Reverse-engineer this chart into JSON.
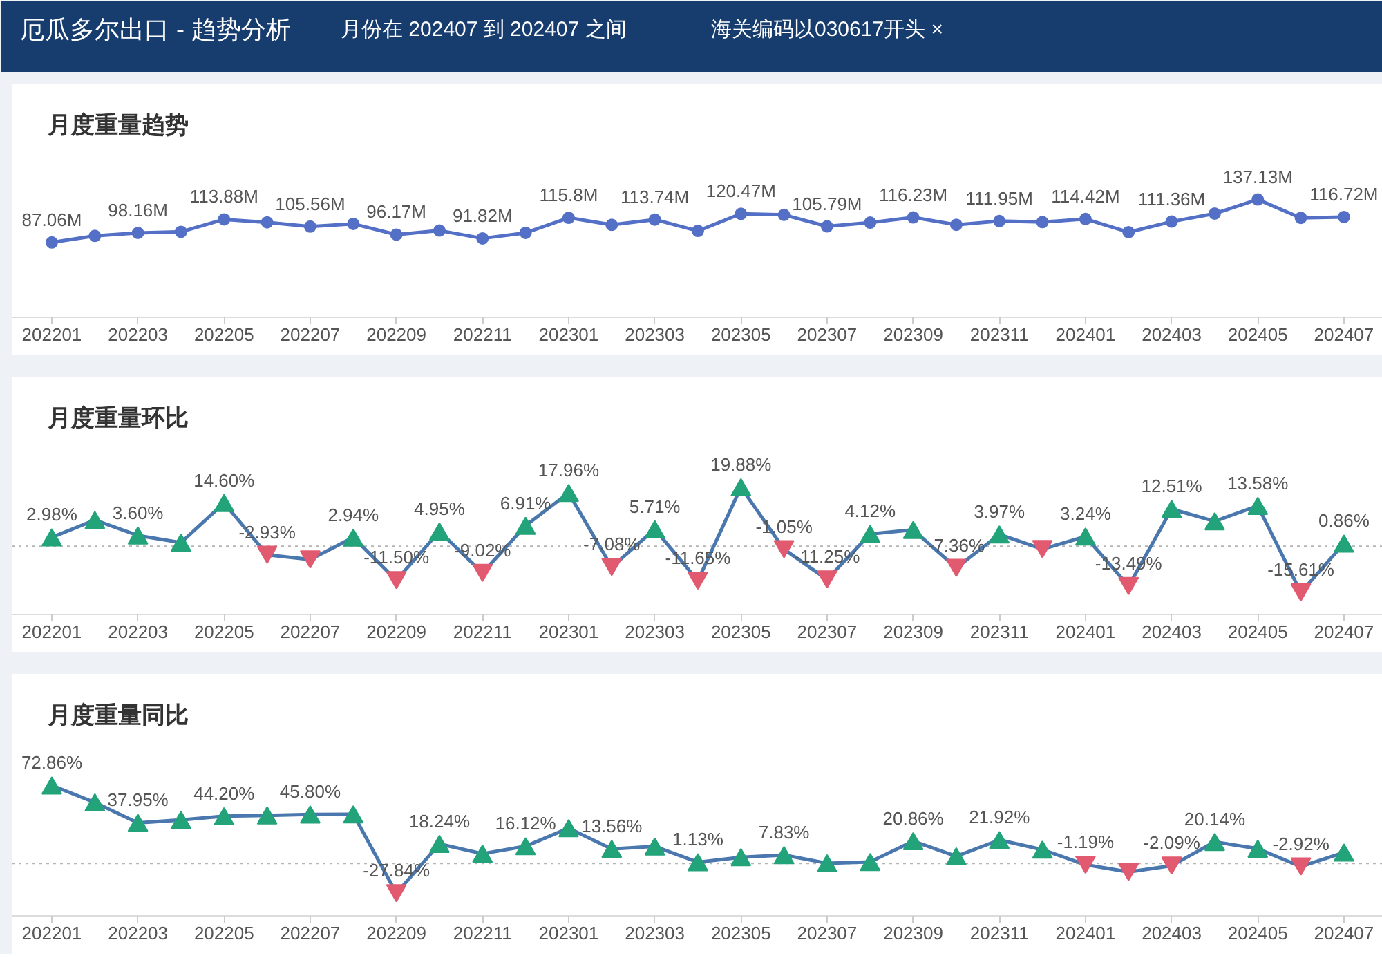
{
  "chart_data": [
    {
      "type": "line",
      "title": "月度重量趋势",
      "annotations": [
        "厄瓜多尔出口 - 趋势分析",
        "月份在 202407 到 202407 之间",
        "海关编码以030617开头 ×"
      ],
      "categories": [
        "202201",
        null,
        "202203",
        null,
        "202205",
        null,
        "202207",
        null,
        "202209",
        null,
        "202211",
        null,
        "202301",
        null,
        "202303",
        null,
        "202305",
        null,
        "202307",
        null,
        "202309",
        null,
        "202311",
        null,
        "202401",
        null,
        "202403",
        null,
        "202405",
        null,
        "202407"
      ],
      "values": [
        87.06,
        94.7,
        98.16,
        99.4,
        113.88,
        110.5,
        105.56,
        108.7,
        96.17,
        100.9,
        91.82,
        98.2,
        115.8,
        107.6,
        113.74,
        100.5,
        120.47,
        119.2,
        105.79,
        110.2,
        116.23,
        107.7,
        111.95,
        110.8,
        114.42,
        99.0,
        111.36,
        120.7,
        137.13,
        115.7,
        116.72
      ],
      "value_labels": [
        "87.06M",
        null,
        "98.16M",
        null,
        "113.88M",
        null,
        "105.56M",
        null,
        "96.17M",
        null,
        "91.82M",
        null,
        "115.8M",
        null,
        "113.74M",
        null,
        "120.47M",
        null,
        "105.79M",
        null,
        "116.23M",
        null,
        "111.95M",
        null,
        "114.42M",
        null,
        "111.36M",
        null,
        "137.13M",
        null,
        "116.72M"
      ],
      "color": "#5470c6",
      "marker": "circle",
      "line_style": "solid",
      "tick_labels": "x"
    },
    {
      "type": "line",
      "title": "月度重量环比",
      "categories": [
        "202201",
        null,
        "202203",
        null,
        "202205",
        null,
        "202207",
        null,
        "202209",
        null,
        "202211",
        null,
        "202301",
        null,
        "202303",
        null,
        "202305",
        null,
        "202307",
        null,
        "202309",
        null,
        "202311",
        null,
        "202401",
        null,
        "202403",
        null,
        "202405",
        null,
        "202407"
      ],
      "values": [
        2.98,
        8.8,
        3.6,
        1.2,
        14.6,
        -2.93,
        -4.5,
        2.94,
        -11.5,
        4.95,
        -9.02,
        6.91,
        17.96,
        -7.08,
        5.71,
        -11.65,
        19.88,
        -1.05,
        -11.25,
        4.12,
        5.5,
        -7.36,
        3.97,
        -1.0,
        3.24,
        -13.49,
        12.51,
        8.4,
        13.58,
        -15.61,
        0.86
      ],
      "value_labels": [
        "2.98%",
        null,
        "3.60%",
        null,
        "14.60%",
        "-2.93%",
        null,
        "2.94%",
        "-11.50%",
        "4.95%",
        "-9.02%",
        "6.91%",
        "17.96%",
        "-7.08%",
        "5.71%",
        "-11.65%",
        "19.88%",
        "-1.05%",
        "-11.25%",
        "4.12%",
        null,
        "-7.36%",
        "3.97%",
        null,
        "3.24%",
        "-13.49%",
        "12.51%",
        null,
        "13.58%",
        "-15.61%",
        "0.86%"
      ],
      "color": "#4a78ae",
      "colors": [
        "#22a37a",
        "#22a37a",
        "#22a37a",
        "#22a37a",
        "#22a37a",
        "#e15a6f",
        "#e15a6f",
        "#22a37a",
        "#e15a6f",
        "#22a37a",
        "#e15a6f",
        "#22a37a",
        "#22a37a",
        "#e15a6f",
        "#22a37a",
        "#e15a6f",
        "#22a37a",
        "#e15a6f",
        "#e15a6f",
        "#22a37a",
        "#22a37a",
        "#e15a6f",
        "#22a37a",
        "#e15a6f",
        "#22a37a",
        "#e15a6f",
        "#22a37a",
        "#22a37a",
        "#22a37a",
        "#e15a6f",
        "#22a37a"
      ],
      "marker": "triangle",
      "line_style": "solid",
      "tick_labels": "x",
      "ref_lines": [
        {
          "axis": "y",
          "value": 0,
          "line_style": "dotted",
          "color": "#b4b4b4"
        }
      ]
    },
    {
      "type": "line",
      "title": "月度重量同比",
      "categories": [
        "202201",
        null,
        "202203",
        null,
        "202205",
        null,
        "202207",
        null,
        "202209",
        null,
        "202211",
        null,
        "202301",
        null,
        "202303",
        null,
        "202305",
        null,
        "202307",
        null,
        "202309",
        null,
        "202311",
        null,
        "202401",
        null,
        "202403",
        null,
        "202405",
        null,
        "202407"
      ],
      "values": [
        72.86,
        57.0,
        37.95,
        40.7,
        44.2,
        44.9,
        45.8,
        46.0,
        -27.84,
        18.24,
        9.1,
        16.12,
        33.0,
        13.56,
        15.9,
        1.13,
        5.8,
        7.83,
        0.2,
        1.4,
        20.86,
        6.7,
        21.92,
        12.9,
        -1.19,
        -8.0,
        -2.09,
        20.14,
        13.8,
        -2.92,
        10.3
      ],
      "value_labels": [
        "72.86%",
        null,
        "37.95%",
        null,
        "44.20%",
        null,
        "45.80%",
        null,
        "-27.84%",
        "18.24%",
        null,
        "16.12%",
        null,
        "13.56%",
        null,
        "1.13%",
        null,
        "7.83%",
        null,
        null,
        "20.86%",
        null,
        "21.92%",
        null,
        "-1.19%",
        null,
        "-2.09%",
        "20.14%",
        null,
        "-2.92%",
        null
      ],
      "color": "#4a78ae",
      "colors": [
        "#22a37a",
        "#22a37a",
        "#22a37a",
        "#22a37a",
        "#22a37a",
        "#22a37a",
        "#22a37a",
        "#22a37a",
        "#e15a6f",
        "#22a37a",
        "#22a37a",
        "#22a37a",
        "#22a37a",
        "#22a37a",
        "#22a37a",
        "#22a37a",
        "#22a37a",
        "#22a37a",
        "#22a37a",
        "#22a37a",
        "#22a37a",
        "#22a37a",
        "#22a37a",
        "#22a37a",
        "#e15a6f",
        "#e15a6f",
        "#e15a6f",
        "#22a37a",
        "#22a37a",
        "#e15a6f",
        "#22a37a"
      ],
      "marker": "triangle",
      "line_style": "solid",
      "tick_labels": "x",
      "ref_lines": [
        {
          "axis": "y",
          "value": 0,
          "line_style": "dotted",
          "color": "#b4b4b4"
        }
      ]
    }
  ]
}
